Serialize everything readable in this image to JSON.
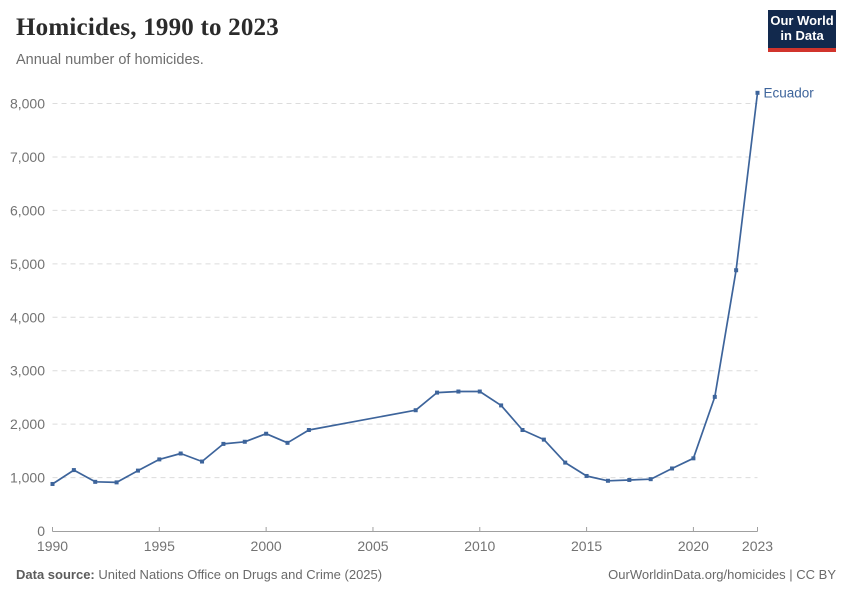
{
  "header": {
    "title": "Homicides, 1990 to 2023",
    "subtitle": "Annual number of homicides.",
    "logo": {
      "line1": "Our World",
      "line2": "in Data"
    }
  },
  "chart_data": {
    "type": "line",
    "title": "Homicides, 1990 to 2023",
    "xlabel": "",
    "ylabel": "",
    "xlim": [
      1990,
      2023
    ],
    "ylim": [
      0,
      8000
    ],
    "xticks": [
      1990,
      1995,
      2000,
      2005,
      2010,
      2015,
      2020,
      2023
    ],
    "yticks": [
      0,
      1000,
      2000,
      3000,
      4000,
      5000,
      6000,
      7000,
      8000
    ],
    "grid": true,
    "legend_position": "end-of-line-label",
    "gap_years_no_markers": [
      2003,
      2004,
      2005,
      2006
    ],
    "series": [
      {
        "name": "Ecuador",
        "color": "#3d649b",
        "points": [
          [
            1990,
            880
          ],
          [
            1991,
            1140
          ],
          [
            1992,
            920
          ],
          [
            1993,
            910
          ],
          [
            1994,
            1130
          ],
          [
            1995,
            1340
          ],
          [
            1996,
            1450
          ],
          [
            1997,
            1300
          ],
          [
            1998,
            1630
          ],
          [
            1999,
            1670
          ],
          [
            2000,
            1820
          ],
          [
            2001,
            1650
          ],
          [
            2002,
            1890
          ],
          [
            2007,
            2260
          ],
          [
            2008,
            2590
          ],
          [
            2009,
            2610
          ],
          [
            2010,
            2610
          ],
          [
            2011,
            2350
          ],
          [
            2012,
            1890
          ],
          [
            2013,
            1710
          ],
          [
            2014,
            1280
          ],
          [
            2015,
            1030
          ],
          [
            2016,
            940
          ],
          [
            2017,
            955
          ],
          [
            2018,
            970
          ],
          [
            2019,
            1170
          ],
          [
            2020,
            1360
          ],
          [
            2021,
            2510
          ],
          [
            2022,
            4880
          ],
          [
            2023,
            8200
          ]
        ]
      }
    ]
  },
  "footer": {
    "source_label": "Data source:",
    "source_text": " United Nations Office on Drugs and Crime (2025)",
    "credit_text": "OurWorldinData.org/homicides | CC BY"
  },
  "colors": {
    "series_blue": "#3d649b",
    "gridline": "#dcdcdc",
    "axis_line": "#a0a0a0",
    "tick_text": "#737373",
    "title_text": "#2b2b2b",
    "subtitle_text": "#6e6e6e",
    "logo_navy": "#12294d",
    "logo_red": "#d1342c"
  }
}
